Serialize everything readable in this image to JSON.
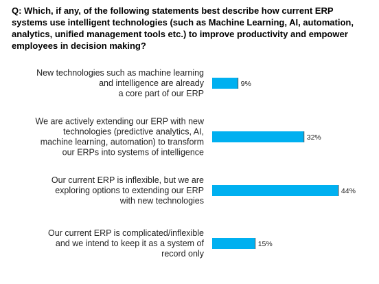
{
  "chart_data": {
    "type": "bar",
    "orientation": "horizontal",
    "title": "Q: Which, if any, of the following statements best describe how current ERP systems use intelligent technologies (such as Machine Learning, AI, automation, analytics, unified management tools etc.) to improve productivity and empower employees in decision making?",
    "categories": [
      [
        "New technologies such as machine learning",
        "and intelligence are already",
        "a core part of our ERP"
      ],
      [
        "We are actively extending our ERP with new",
        "technologies (predictive analytics, AI,",
        "machine learning, automation) to transform",
        "our ERPs into systems of intelligence"
      ],
      [
        "Our current ERP is inflexible, but we are",
        "exploring options to extending our ERP",
        "with new technologies"
      ],
      [
        "Our current ERP is complicated/inflexible",
        "and we intend to keep it as a system of",
        "record only"
      ]
    ],
    "values": [
      9,
      32,
      44,
      15
    ],
    "value_labels": [
      "9%",
      "32%",
      "44%",
      "15%"
    ],
    "unit": "%",
    "xlim": [
      0,
      100
    ],
    "grid": false,
    "legend": "none",
    "bar_color": "#00B0F0"
  }
}
